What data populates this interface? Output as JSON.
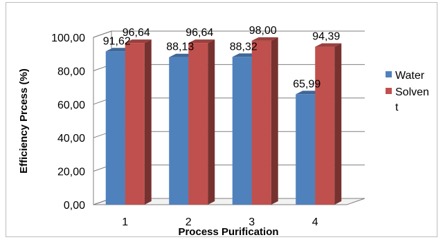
{
  "chart_data": {
    "type": "bar",
    "title": "",
    "xlabel": "Process Purification",
    "ylabel": "Efficiency Prcess (%)",
    "categories": [
      "1",
      "2",
      "3",
      "4"
    ],
    "ylim": [
      0,
      100
    ],
    "ytick_labels": [
      "0,00",
      "20,00",
      "40,00",
      "60,00",
      "80,00",
      "100,00"
    ],
    "series": [
      {
        "name": "Water",
        "values": [
          91.62,
          88.13,
          88.32,
          65.99
        ],
        "labels": [
          "91,62",
          "88,13",
          "88,32",
          "65,99"
        ],
        "color": "#4f81bd"
      },
      {
        "name": "Solvent",
        "values": [
          96.64,
          96.64,
          98.0,
          94.39
        ],
        "labels": [
          "96,64",
          "96,64",
          "98,00",
          "94,39"
        ],
        "color": "#c0504d"
      }
    ],
    "legend_lines": [
      [
        "Water"
      ],
      [
        "Solven",
        "t"
      ]
    ],
    "grid": true,
    "legend_position": "right",
    "style": "3d-clustered-column"
  }
}
